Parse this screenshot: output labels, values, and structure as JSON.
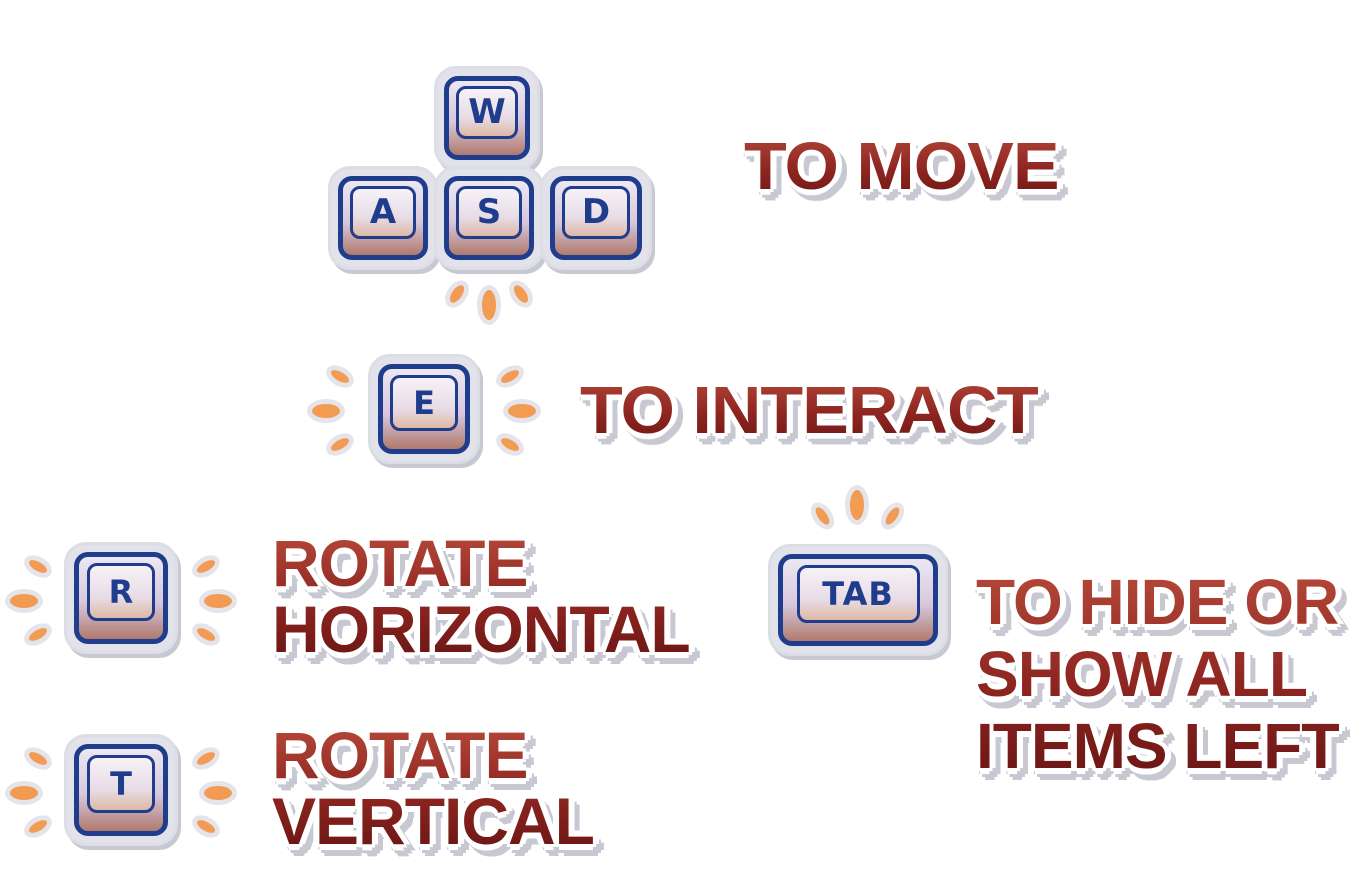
{
  "controls": {
    "move": {
      "keys": [
        "W",
        "A",
        "S",
        "D"
      ],
      "label": "TO MOVE"
    },
    "interact": {
      "key": "E",
      "label": "TO INTERACT"
    },
    "rotate_horizontal": {
      "key": "R",
      "label_lines": [
        "ROTATE",
        "HORIZONTAL"
      ]
    },
    "rotate_vertical": {
      "key": "T",
      "label_lines": [
        "ROTATE",
        "VERTICAL"
      ]
    },
    "toggle_items": {
      "key": "TAB",
      "label_lines": [
        "TO HIDE OR",
        "SHOW ALL",
        "ITEMS LEFT"
      ]
    }
  },
  "colors": {
    "key_border": "#1f3d8c",
    "key_letter": "#1f3d8c",
    "label_red": "#962a22",
    "spark_orange": "#f29b52",
    "sticker_outline": "#e2e3ea"
  }
}
